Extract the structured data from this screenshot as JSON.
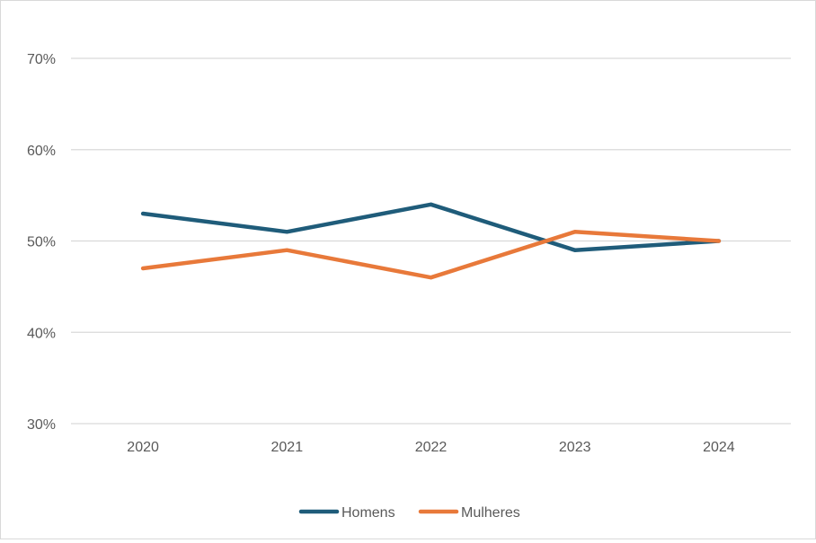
{
  "chart_data": {
    "type": "line",
    "title": "",
    "xlabel": "",
    "ylabel": "",
    "categories": [
      "2020",
      "2021",
      "2022",
      "2023",
      "2024"
    ],
    "series": [
      {
        "name": "Homens",
        "values": [
          53,
          51,
          54,
          49,
          50
        ],
        "color": "#1f5c7a"
      },
      {
        "name": "Mulheres",
        "values": [
          47,
          49,
          46,
          51,
          50
        ],
        "color": "#e8793a"
      }
    ],
    "ylim": [
      30,
      70
    ],
    "yticks": [
      30,
      40,
      50,
      60,
      70
    ],
    "ytick_labels": [
      "30%",
      "40%",
      "50%",
      "60%",
      "70%"
    ],
    "unit": "%",
    "grid": true,
    "legend_position": "bottom"
  }
}
